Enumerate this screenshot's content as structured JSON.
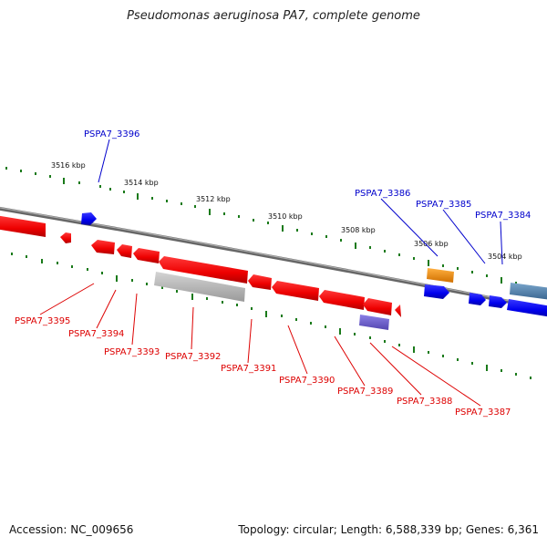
{
  "title": "Pseudomonas aeruginosa PA7, complete genome",
  "footer": {
    "accession": "Accession: NC_009656",
    "stats": "Topology: circular; Length: 6,588,339 bp; Genes: 6,361"
  },
  "colors": {
    "forward_gene": "#0000ee",
    "reverse_gene": "#ee0000",
    "tick_mark": "#1a7a1a",
    "backbone": "#777777",
    "orange_feature": "#f08a00",
    "steel_feature": "#4a7aa8",
    "purple_feature": "#6a5acd",
    "gray_feature": "#b0b0b0"
  },
  "scale_labels": [
    "3516 kbp",
    "3514 kbp",
    "3512 kbp",
    "3510 kbp",
    "3508 kbp",
    "3506 kbp",
    "3504 kbp"
  ],
  "forward_labels": [
    "PSPA7_3396",
    "PSPA7_3386",
    "PSPA7_3385",
    "PSPA7_3384"
  ],
  "reverse_labels": [
    "PSPA7_3395",
    "PSPA7_3394",
    "PSPA7_3393",
    "PSPA7_3392",
    "PSPA7_3391",
    "PSPA7_3390",
    "PSPA7_3389",
    "PSPA7_3388",
    "PSPA7_3387"
  ]
}
